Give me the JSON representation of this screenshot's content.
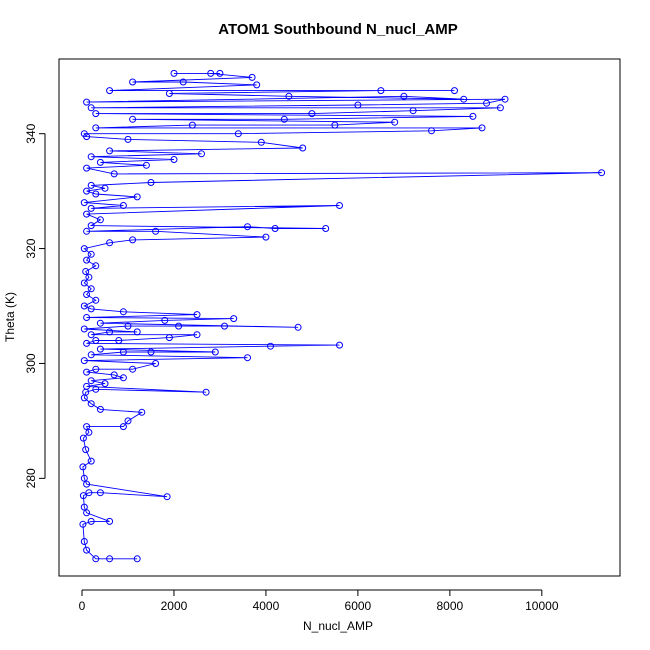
{
  "chart_data": {
    "type": "line",
    "title": "ATOM1 Southbound N_nucl_AMP",
    "xlabel": "N_nucl_AMP",
    "ylabel": "Theta (K)",
    "xlim": [
      -500,
      11700
    ],
    "ylim": [
      263,
      353
    ],
    "xticks": [
      "0",
      "2000",
      "4000",
      "6000",
      "8000",
      "10000"
    ],
    "yticks": [
      "280",
      "300",
      "320",
      "340"
    ],
    "grid": false,
    "legend": "none",
    "markers": "open-circle",
    "color": "#0000ff",
    "series": [
      {
        "name": "",
        "points": [
          [
            1200,
            266
          ],
          [
            600,
            266
          ],
          [
            300,
            266
          ],
          [
            100,
            267.5
          ],
          [
            50,
            269
          ],
          [
            20,
            272
          ],
          [
            200,
            272.5
          ],
          [
            600,
            272.5
          ],
          [
            100,
            274
          ],
          [
            50,
            275
          ],
          [
            30,
            277
          ],
          [
            150,
            277.5
          ],
          [
            400,
            277.5
          ],
          [
            1850,
            276.8
          ],
          [
            100,
            279
          ],
          [
            50,
            280
          ],
          [
            20,
            282
          ],
          [
            200,
            283
          ],
          [
            80,
            285
          ],
          [
            30,
            287
          ],
          [
            150,
            288
          ],
          [
            100,
            289
          ],
          [
            900,
            289
          ],
          [
            1000,
            290
          ],
          [
            1300,
            291.5
          ],
          [
            400,
            292
          ],
          [
            200,
            293
          ],
          [
            50,
            294
          ],
          [
            80,
            295
          ],
          [
            300,
            295.5
          ],
          [
            2700,
            295
          ],
          [
            100,
            296
          ],
          [
            500,
            296.5
          ],
          [
            200,
            297
          ],
          [
            900,
            297.5
          ],
          [
            700,
            298
          ],
          [
            100,
            298.5
          ],
          [
            300,
            299
          ],
          [
            1100,
            299
          ],
          [
            1600,
            300
          ],
          [
            50,
            300.5
          ],
          [
            3600,
            301
          ],
          [
            200,
            301.5
          ],
          [
            900,
            302
          ],
          [
            1500,
            302
          ],
          [
            2900,
            302
          ],
          [
            400,
            302.5
          ],
          [
            4100,
            303
          ],
          [
            5600,
            303.2
          ],
          [
            100,
            303.5
          ],
          [
            300,
            304
          ],
          [
            800,
            304
          ],
          [
            1900,
            304.5
          ],
          [
            2500,
            305
          ],
          [
            200,
            305
          ],
          [
            600,
            305.5
          ],
          [
            1200,
            305.5
          ],
          [
            50,
            306
          ],
          [
            1000,
            306.5
          ],
          [
            2100,
            306.5
          ],
          [
            3100,
            306.5
          ],
          [
            4700,
            306.3
          ],
          [
            400,
            307
          ],
          [
            1800,
            307.5
          ],
          [
            3300,
            307.8
          ],
          [
            100,
            308
          ],
          [
            2500,
            308.5
          ],
          [
            900,
            309
          ],
          [
            200,
            309.5
          ],
          [
            50,
            310
          ],
          [
            300,
            311
          ],
          [
            100,
            312
          ],
          [
            200,
            313
          ],
          [
            50,
            314
          ],
          [
            150,
            315
          ],
          [
            80,
            316
          ],
          [
            300,
            317
          ],
          [
            100,
            318
          ],
          [
            200,
            319
          ],
          [
            50,
            320
          ],
          [
            600,
            321
          ],
          [
            1100,
            321.5
          ],
          [
            4000,
            322
          ],
          [
            1600,
            323
          ],
          [
            100,
            323
          ],
          [
            3600,
            323.8
          ],
          [
            4200,
            323.5
          ],
          [
            5300,
            323.5
          ],
          [
            200,
            324
          ],
          [
            400,
            325
          ],
          [
            100,
            326
          ],
          [
            5600,
            327.5
          ],
          [
            200,
            327
          ],
          [
            900,
            327.5
          ],
          [
            50,
            328
          ],
          [
            1200,
            329
          ],
          [
            300,
            329.5
          ],
          [
            100,
            330
          ],
          [
            500,
            330.5
          ],
          [
            200,
            331
          ],
          [
            1500,
            331.5
          ],
          [
            11300,
            333.2
          ],
          [
            700,
            333
          ],
          [
            100,
            334
          ],
          [
            1400,
            334.5
          ],
          [
            400,
            335
          ],
          [
            2000,
            335.5
          ],
          [
            200,
            336
          ],
          [
            2600,
            336.5
          ],
          [
            600,
            337
          ],
          [
            4800,
            337.5
          ],
          [
            3900,
            338.5
          ],
          [
            1000,
            339
          ],
          [
            100,
            339.5
          ],
          [
            50,
            340
          ],
          [
            3400,
            340
          ],
          [
            7600,
            340.5
          ],
          [
            8700,
            341
          ],
          [
            300,
            341
          ],
          [
            2400,
            341.5
          ],
          [
            5500,
            341.5
          ],
          [
            6800,
            342
          ],
          [
            1100,
            342.5
          ],
          [
            4400,
            342.5
          ],
          [
            8500,
            343
          ],
          [
            300,
            343.5
          ],
          [
            5000,
            343.5
          ],
          [
            7200,
            344
          ],
          [
            9100,
            344.5
          ],
          [
            200,
            344.5
          ],
          [
            6000,
            345
          ],
          [
            8800,
            345.3
          ],
          [
            9200,
            346
          ],
          [
            100,
            345.5
          ],
          [
            7000,
            346.5
          ],
          [
            8300,
            346
          ],
          [
            4500,
            346.5
          ],
          [
            1900,
            347
          ],
          [
            6500,
            347.5
          ],
          [
            8100,
            347.5
          ],
          [
            600,
            347.5
          ],
          [
            3800,
            348.5
          ],
          [
            2200,
            349
          ],
          [
            1100,
            349
          ],
          [
            3700,
            349.8
          ],
          [
            2800,
            350.5
          ],
          [
            2000,
            350.5
          ],
          [
            3000,
            350.5
          ]
        ]
      }
    ]
  }
}
